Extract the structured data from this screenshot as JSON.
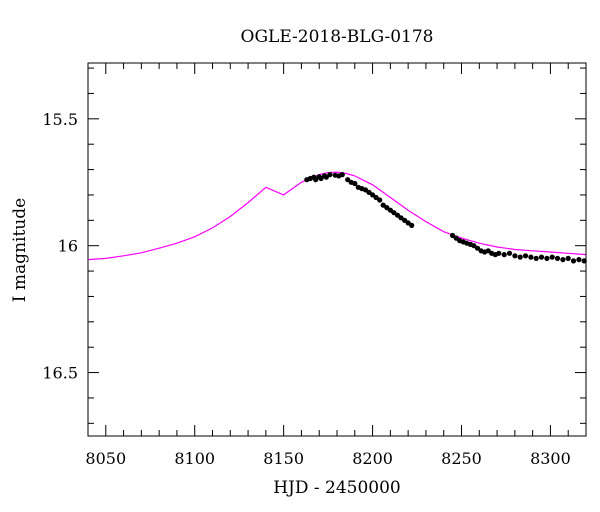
{
  "chart_data": {
    "type": "scatter",
    "title": "OGLE-2018-BLG-0178",
    "xlabel": "HJD - 2450000",
    "ylabel": "I magnitude",
    "xlim": [
      8040,
      8320
    ],
    "ylim": [
      16.75,
      15.28
    ],
    "y_inverted": true,
    "grid": false,
    "x_ticks": [
      8050,
      8100,
      8150,
      8200,
      8250,
      8300
    ],
    "x_tick_labels": [
      "8050",
      "8100",
      "8150",
      "8200",
      "8250",
      "8300"
    ],
    "y_ticks": [
      15.5,
      16,
      16.5
    ],
    "y_tick_labels": [
      "15.5",
      "16",
      "16.5"
    ],
    "x_minor_step": 10,
    "y_minor_step": 0.1,
    "model_color": "#ff00ff",
    "point_color": "#000000",
    "model_curve": {
      "x": [
        8040,
        8050,
        8060,
        8070,
        8080,
        8090,
        8100,
        8110,
        8120,
        8130,
        8140,
        8150,
        8160,
        8165,
        8170,
        8175,
        8180,
        8185,
        8190,
        8200,
        8210,
        8220,
        8230,
        8240,
        8250,
        8260,
        8270,
        8280,
        8290,
        8300,
        8310,
        8320
      ],
      "y": [
        16.055,
        16.05,
        16.04,
        16.028,
        16.01,
        15.99,
        15.965,
        15.93,
        15.885,
        15.83,
        15.77,
        15.8,
        15.75,
        15.735,
        15.72,
        15.712,
        15.71,
        15.715,
        15.725,
        15.76,
        15.81,
        15.86,
        15.905,
        15.945,
        15.97,
        15.99,
        16.005,
        16.015,
        16.02,
        16.025,
        16.03,
        16.035
      ]
    },
    "observations": {
      "x": [
        8163,
        8165,
        8167,
        8168,
        8170,
        8171,
        8173,
        8174,
        8176,
        8179,
        8181,
        8183,
        8186,
        8188,
        8190,
        8192,
        8194,
        8196,
        8198,
        8200,
        8202,
        8204,
        8206,
        8208,
        8210,
        8212,
        8214,
        8216,
        8218,
        8220,
        8222,
        8245,
        8247,
        8249,
        8251,
        8253,
        8255,
        8257,
        8259,
        8261,
        8263,
        8265,
        8267,
        8269,
        8271,
        8274,
        8277,
        8280,
        8283,
        8286,
        8289,
        8292,
        8295,
        8298,
        8301,
        8304,
        8307,
        8310,
        8313,
        8316,
        8319
      ],
      "y": [
        15.74,
        15.735,
        15.73,
        15.74,
        15.728,
        15.735,
        15.725,
        15.73,
        15.72,
        15.722,
        15.725,
        15.72,
        15.74,
        15.75,
        15.755,
        15.77,
        15.775,
        15.78,
        15.79,
        15.8,
        15.81,
        15.82,
        15.84,
        15.85,
        15.86,
        15.87,
        15.88,
        15.89,
        15.9,
        15.91,
        15.92,
        15.96,
        15.97,
        15.98,
        15.985,
        15.99,
        15.995,
        16.0,
        16.01,
        16.02,
        16.025,
        16.02,
        16.03,
        16.035,
        16.03,
        16.035,
        16.03,
        16.04,
        16.045,
        16.04,
        16.045,
        16.05,
        16.045,
        16.05,
        16.045,
        16.05,
        16.055,
        16.05,
        16.06,
        16.055,
        16.06
      ]
    }
  }
}
